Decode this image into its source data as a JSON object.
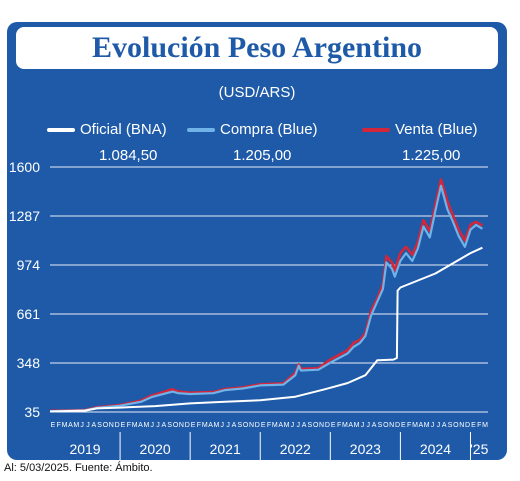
{
  "title": "Evolución Peso Argentino",
  "subtitle": "(USD/ARS)",
  "caption": "Al: 5/03/2025. Fuente: Ámbito.",
  "colors": {
    "background": "#1e5aa8",
    "oficial": "#ffffff",
    "compra": "#6fb3e8",
    "venta": "#d3263a",
    "grid": "#ffffff"
  },
  "legend": [
    {
      "label": "Oficial (BNA)",
      "value": "1.084,50"
    },
    {
      "label": "Compra (Blue)",
      "value": "1.205,00"
    },
    {
      "label": "Venta (Blue)",
      "value": "1.225,00"
    }
  ],
  "chart_data": {
    "type": "line",
    "title": "Evolución Peso Argentino",
    "subtitle": "(USD/ARS)",
    "ylim": [
      35,
      1600
    ],
    "yticks": [
      35,
      348,
      661,
      974,
      1287,
      1600
    ],
    "grid": true,
    "legend_position": "top",
    "month_labels": "EFMAMJJASOND",
    "years": [
      "2019",
      "2020",
      "2021",
      "2022",
      "2023",
      "2024",
      "'25"
    ],
    "x_start": 2019.0,
    "x_end": 2025.25,
    "series": [
      {
        "name": "Oficial (BNA)",
        "points": [
          [
            2019.0,
            38
          ],
          [
            2019.5,
            44
          ],
          [
            2019.67,
            58
          ],
          [
            2020.0,
            63
          ],
          [
            2020.5,
            73
          ],
          [
            2021.0,
            90
          ],
          [
            2021.5,
            101
          ],
          [
            2022.0,
            110
          ],
          [
            2022.5,
            133
          ],
          [
            2022.92,
            180
          ],
          [
            2023.25,
            220
          ],
          [
            2023.5,
            270
          ],
          [
            2023.67,
            365
          ],
          [
            2023.9,
            370
          ],
          [
            2023.95,
            380
          ],
          [
            2023.96,
            810
          ],
          [
            2024.0,
            830
          ],
          [
            2024.5,
            920
          ],
          [
            2025.0,
            1050
          ],
          [
            2025.17,
            1084.5
          ]
        ]
      },
      {
        "name": "Compra (Blue)",
        "points": [
          [
            2019.0,
            40
          ],
          [
            2019.5,
            46
          ],
          [
            2019.67,
            62
          ],
          [
            2020.0,
            75
          ],
          [
            2020.3,
            100
          ],
          [
            2020.45,
            130
          ],
          [
            2020.75,
            165
          ],
          [
            2020.83,
            155
          ],
          [
            2021.0,
            150
          ],
          [
            2021.33,
            155
          ],
          [
            2021.5,
            175
          ],
          [
            2021.75,
            185
          ],
          [
            2022.0,
            205
          ],
          [
            2022.33,
            210
          ],
          [
            2022.5,
            270
          ],
          [
            2022.55,
            330
          ],
          [
            2022.58,
            300
          ],
          [
            2022.83,
            305
          ],
          [
            2023.0,
            350
          ],
          [
            2023.25,
            410
          ],
          [
            2023.33,
            450
          ],
          [
            2023.42,
            475
          ],
          [
            2023.5,
            520
          ],
          [
            2023.58,
            650
          ],
          [
            2023.67,
            740
          ],
          [
            2023.75,
            820
          ],
          [
            2023.8,
            990
          ],
          [
            2023.88,
            950
          ],
          [
            2023.92,
            900
          ],
          [
            2024.0,
            1000
          ],
          [
            2024.08,
            1050
          ],
          [
            2024.17,
            1000
          ],
          [
            2024.25,
            1080
          ],
          [
            2024.33,
            1220
          ],
          [
            2024.42,
            1150
          ],
          [
            2024.5,
            1320
          ],
          [
            2024.58,
            1480
          ],
          [
            2024.67,
            1330
          ],
          [
            2024.75,
            1250
          ],
          [
            2024.83,
            1160
          ],
          [
            2024.92,
            1090
          ],
          [
            2025.0,
            1200
          ],
          [
            2025.08,
            1230
          ],
          [
            2025.17,
            1205
          ]
        ]
      },
      {
        "name": "Venta (Blue)",
        "points": [
          [
            2019.0,
            42
          ],
          [
            2019.5,
            48
          ],
          [
            2019.67,
            65
          ],
          [
            2020.0,
            80
          ],
          [
            2020.3,
            108
          ],
          [
            2020.45,
            140
          ],
          [
            2020.75,
            180
          ],
          [
            2020.83,
            165
          ],
          [
            2021.0,
            158
          ],
          [
            2021.33,
            162
          ],
          [
            2021.5,
            182
          ],
          [
            2021.75,
            192
          ],
          [
            2022.0,
            212
          ],
          [
            2022.33,
            218
          ],
          [
            2022.5,
            285
          ],
          [
            2022.55,
            340
          ],
          [
            2022.58,
            310
          ],
          [
            2022.83,
            315
          ],
          [
            2023.0,
            370
          ],
          [
            2023.25,
            430
          ],
          [
            2023.33,
            475
          ],
          [
            2023.42,
            495
          ],
          [
            2023.5,
            540
          ],
          [
            2023.58,
            680
          ],
          [
            2023.67,
            760
          ],
          [
            2023.75,
            850
          ],
          [
            2023.8,
            1030
          ],
          [
            2023.88,
            990
          ],
          [
            2023.92,
            940
          ],
          [
            2024.0,
            1050
          ],
          [
            2024.08,
            1090
          ],
          [
            2024.17,
            1040
          ],
          [
            2024.25,
            1120
          ],
          [
            2024.33,
            1260
          ],
          [
            2024.42,
            1190
          ],
          [
            2024.5,
            1360
          ],
          [
            2024.58,
            1520
          ],
          [
            2024.67,
            1380
          ],
          [
            2024.75,
            1290
          ],
          [
            2024.83,
            1200
          ],
          [
            2024.92,
            1130
          ],
          [
            2025.0,
            1230
          ],
          [
            2025.08,
            1250
          ],
          [
            2025.17,
            1225
          ]
        ]
      }
    ]
  }
}
